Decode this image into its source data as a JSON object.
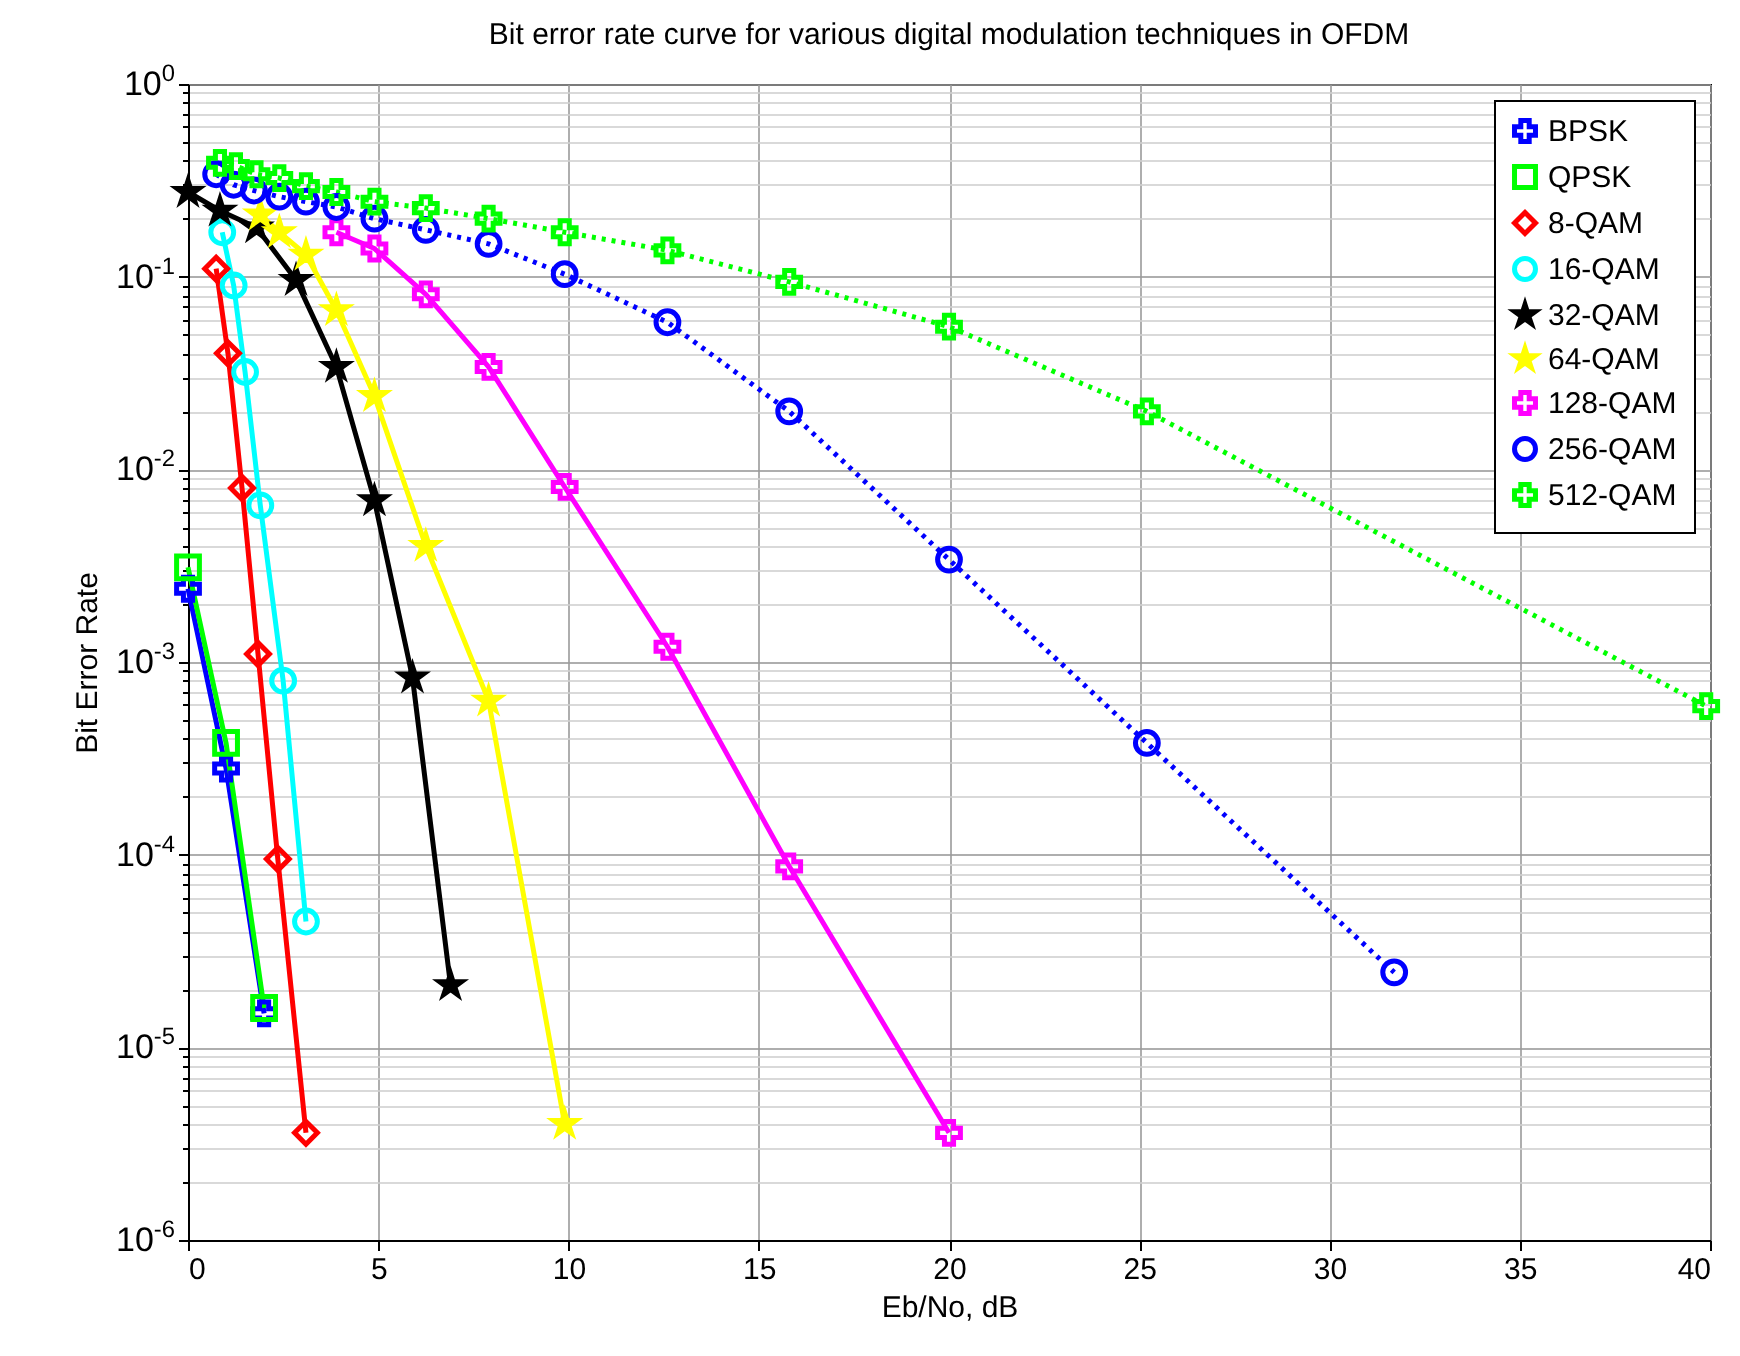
{
  "chart_data": {
    "type": "line",
    "title": "Bit error rate curve for various digital modulation techniques in OFDM",
    "xlabel": "Eb/No, dB",
    "ylabel": "Bit Error Rate",
    "log": "y",
    "grid": true,
    "legend": "top right",
    "xlim": [
      0,
      40
    ],
    "xticks": [
      0,
      5,
      10,
      15,
      20,
      25,
      30,
      35,
      40
    ],
    "ylim": [
      1e-06,
      1
    ],
    "yticks": [
      {
        "value": 1e-06,
        "label": "10$^{-6}$"
      },
      {
        "value": 1e-05,
        "label": "10$^{-5}$"
      },
      {
        "value": 0.0001,
        "label": "10$^{-4}$"
      },
      {
        "value": 0.001,
        "label": "10$^{-3}$"
      },
      {
        "value": 0.01,
        "label": "10$^{-2}$"
      },
      {
        "value": 0.1,
        "label": "10$^{-1}$"
      },
      {
        "value": 1,
        "label": "10$^{0}$"
      }
    ],
    "series": [
      {
        "name": "BPSK",
        "color": "#0000ff",
        "marker": "cross",
        "line_style": "solid",
        "x": [
          0,
          1,
          2
        ],
        "values": [
          0.0024,
          0.00028,
          1.5e-05
        ]
      },
      {
        "name": "QPSK",
        "color": "#00ff00",
        "marker": "square",
        "line_style": "solid",
        "x": [
          0,
          1,
          2
        ],
        "values": [
          0.0031,
          0.00038,
          1.6e-05
        ]
      },
      {
        "name": "8-QAM",
        "color": "#ff0000",
        "marker": "diamond",
        "line_style": "solid",
        "x": [
          0.74,
          1.05,
          1.42,
          1.84,
          2.36,
          3.1
        ],
        "values": [
          0.11,
          0.04,
          0.008,
          0.0011,
          9.5e-05,
          3.6e-06
        ]
      },
      {
        "name": "16-QAM",
        "color": "#00ffff",
        "marker": "circle",
        "line_style": "solid",
        "x": [
          0.9,
          1.2,
          1.5,
          1.9,
          2.5,
          3.1
        ],
        "values": [
          0.17,
          0.09,
          0.032,
          0.0065,
          0.0008,
          4.5e-05
        ]
      },
      {
        "name": "32-QAM",
        "color": "#000000",
        "marker": "star",
        "line_style": "solid",
        "x": [
          0,
          0.84,
          1.8,
          2.84,
          3.9,
          4.9,
          5.9,
          6.9
        ],
        "values": [
          0.275,
          0.22,
          0.18,
          0.096,
          0.034,
          0.0069,
          0.00083,
          2.1e-05
        ]
      },
      {
        "name": "64-QAM",
        "color": "#ffff00",
        "marker": "star",
        "line_style": "solid",
        "x": [
          1.9,
          2.4,
          3.1,
          3.9,
          4.9,
          6.25,
          7.9,
          9.9
        ],
        "values": [
          0.21,
          0.17,
          0.13,
          0.067,
          0.024,
          0.004,
          0.00063,
          4e-06
        ]
      },
      {
        "name": "128-QAM",
        "color": "#ff00ff",
        "marker": "cross",
        "line_style": "solid",
        "x": [
          3.9,
          4.9,
          6.25,
          7.9,
          9.9,
          12.6,
          15.8,
          20
        ],
        "values": [
          0.17,
          0.14,
          0.081,
          0.034,
          0.0081,
          0.0012,
          8.7e-05,
          3.6e-06
        ]
      },
      {
        "name": "256-QAM",
        "color": "#0000ff",
        "marker": "circle",
        "line_style": "dotted",
        "x": [
          0.74,
          1.2,
          1.73,
          2.4,
          3.1,
          3.9,
          4.9,
          6.25,
          7.9,
          9.9,
          12.6,
          15.8,
          20,
          25.2,
          31.7
        ],
        "values": [
          0.34,
          0.3,
          0.28,
          0.26,
          0.245,
          0.23,
          0.2,
          0.175,
          0.148,
          0.103,
          0.058,
          0.02,
          0.0034,
          0.00038,
          2.45e-05
        ]
      },
      {
        "name": "512-QAM",
        "color": "#00ff00",
        "marker": "cross",
        "line_style": "dotted",
        "x": [
          0.84,
          1.26,
          1.8,
          2.4,
          3.1,
          3.9,
          4.9,
          6.25,
          7.9,
          9.9,
          12.6,
          15.8,
          20,
          25.2,
          39.9
        ],
        "values": [
          0.39,
          0.375,
          0.34,
          0.325,
          0.295,
          0.275,
          0.245,
          0.227,
          0.2,
          0.17,
          0.137,
          0.094,
          0.055,
          0.02,
          0.00059
        ]
      }
    ]
  }
}
